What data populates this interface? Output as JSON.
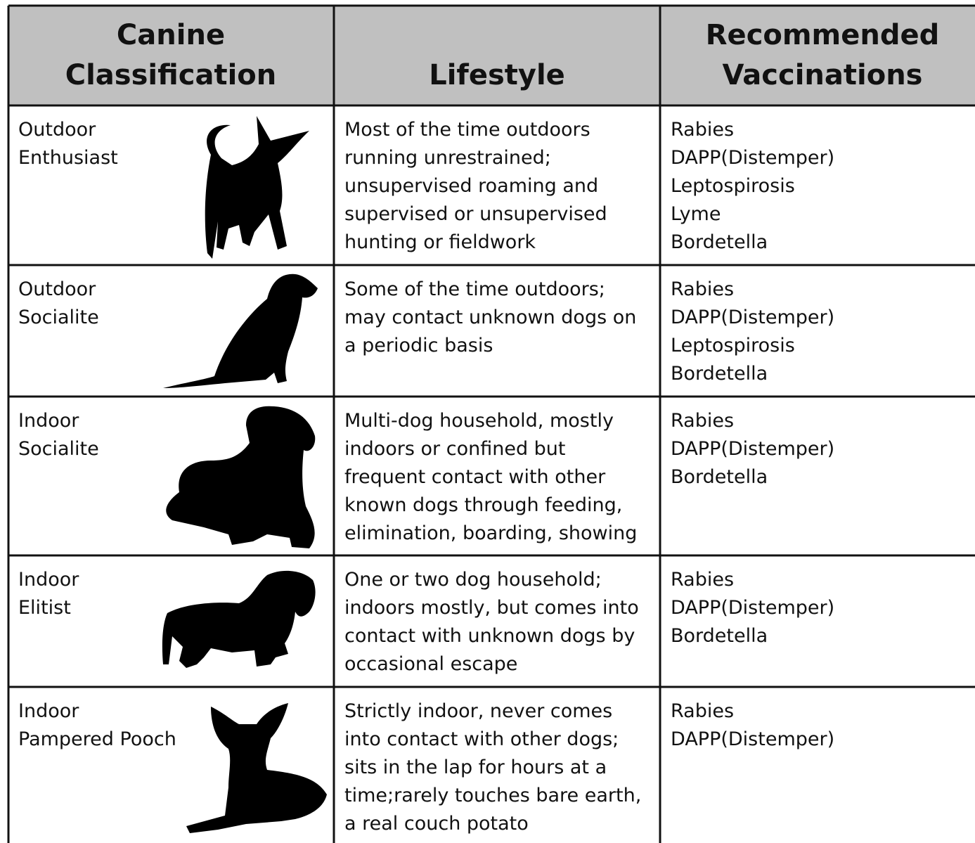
{
  "table": {
    "header": [
      [
        "Canine",
        "Classification"
      ],
      [
        "Lifestyle"
      ],
      [
        "Recommended",
        "Vaccinations"
      ]
    ],
    "rows": [
      {
        "classification": [
          "Outdoor",
          "Enthusiast"
        ],
        "lifestyle": [
          "Most of the time outdoors",
          "running unrestrained;",
          "unsupervised roaming and",
          "supervised or unsupervised",
          "hunting or fieldwork"
        ],
        "vaccinations": [
          "Rabies",
          "DAPP(Distemper)",
          "Leptospirosis",
          "Lyme",
          "Bordetella"
        ]
      },
      {
        "classification": [
          "Outdoor",
          "Socialite"
        ],
        "lifestyle": [
          "Some of the time outdoors;",
          "may contact unknown dogs on",
          "a periodic basis"
        ],
        "vaccinations": [
          "Rabies",
          "DAPP(Distemper)",
          "Leptospirosis",
          "Bordetella"
        ]
      },
      {
        "classification": [
          "Indoor",
          "Socialite"
        ],
        "lifestyle": [
          "Multi-dog household, mostly",
          "indoors or confined but",
          "frequent contact with other",
          "known dogs through feeding,",
          "elimination, boarding, showing"
        ],
        "vaccinations": [
          "Rabies",
          "DAPP(Distemper)",
          "Bordetella"
        ]
      },
      {
        "classification": [
          "Indoor",
          "Elitist"
        ],
        "lifestyle": [
          "One or two dog household;",
          "indoors mostly, but comes into",
          "contact with unknown dogs by",
          "occasional escape"
        ],
        "vaccinations": [
          "Rabies",
          "DAPP(Distemper)",
          "Bordetella"
        ]
      },
      {
        "classification": [
          "Indoor",
          "Pampered Pooch"
        ],
        "lifestyle": [
          "Strictly indoor, never comes",
          "into contact with other dogs;",
          "sits in the lap for hours at a",
          "time;rarely touches bare earth,",
          "a real couch potato"
        ],
        "vaccinations": [
          "Rabies",
          "DAPP(Distemper)"
        ]
      }
    ]
  }
}
